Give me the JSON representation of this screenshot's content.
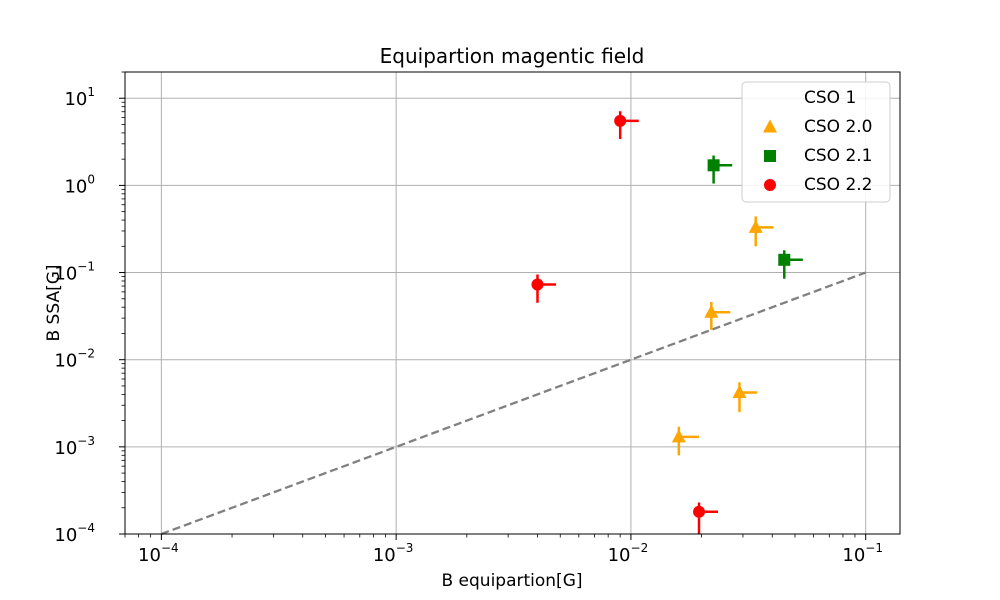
{
  "chart_data": {
    "type": "scatter",
    "title": "Equipartion magentic field",
    "xlabel": "B equipartion[G]",
    "ylabel": "B SSA[G]",
    "xscale": "log",
    "yscale": "log",
    "xlim": [
      7e-05,
      0.14
    ],
    "ylim": [
      0.0001,
      20
    ],
    "grid": true,
    "legend_position": "top-right",
    "x_ticks": [
      {
        "value": 0.0001,
        "base": "10",
        "exp": "−4"
      },
      {
        "value": 0.001,
        "base": "10",
        "exp": "−3"
      },
      {
        "value": 0.01,
        "base": "10",
        "exp": "−2"
      },
      {
        "value": 0.1,
        "base": "10",
        "exp": "−1"
      }
    ],
    "y_ticks": [
      {
        "value": 0.0001,
        "base": "10",
        "exp": "−4"
      },
      {
        "value": 0.001,
        "base": "10",
        "exp": "−3"
      },
      {
        "value": 0.01,
        "base": "10",
        "exp": "−2"
      },
      {
        "value": 0.1,
        "base": "10",
        "exp": "−1"
      },
      {
        "value": 1,
        "base": "10",
        "exp": "0"
      },
      {
        "value": 10,
        "base": "10",
        "exp": "1"
      }
    ],
    "reference_line": {
      "x": [
        0.0001,
        0.1
      ],
      "y": [
        0.0001,
        0.1
      ],
      "color": "#808080",
      "style": "dashed"
    },
    "series": [
      {
        "name": "CSO 1",
        "marker": "none",
        "color": "#ffffff",
        "points": []
      },
      {
        "name": "CSO 2.0",
        "marker": "triangle",
        "color": "#ffa500",
        "points": [
          {
            "x": 0.034,
            "y": 0.33,
            "xerr_plus": 0.0065,
            "yerr_minus": 0.13,
            "yerr_plus": 0.11
          },
          {
            "x": 0.022,
            "y": 0.035,
            "xerr_plus": 0.0045,
            "yerr_minus": 0.013,
            "yerr_plus": 0.011
          },
          {
            "x": 0.029,
            "y": 0.0042,
            "xerr_plus": 0.0055,
            "yerr_minus": 0.0017,
            "yerr_plus": 0.0013
          },
          {
            "x": 0.016,
            "y": 0.0013,
            "xerr_plus": 0.0035,
            "yerr_minus": 0.0005,
            "yerr_plus": 0.0004
          }
        ]
      },
      {
        "name": "CSO 2.1",
        "marker": "square",
        "color": "#008000",
        "points": [
          {
            "x": 0.0225,
            "y": 1.7,
            "xerr_plus": 0.0045,
            "yerr_minus": 0.65,
            "yerr_plus": 0.5
          },
          {
            "x": 0.045,
            "y": 0.14,
            "xerr_plus": 0.009,
            "yerr_minus": 0.055,
            "yerr_plus": 0.04
          }
        ]
      },
      {
        "name": "CSO 2.2",
        "marker": "circle",
        "color": "#ff0000",
        "points": [
          {
            "x": 0.009,
            "y": 5.5,
            "xerr_plus": 0.0018,
            "yerr_minus": 2.1,
            "yerr_plus": 1.6
          },
          {
            "x": 0.004,
            "y": 0.073,
            "xerr_plus": 0.0008,
            "yerr_minus": 0.028,
            "yerr_plus": 0.022
          },
          {
            "x": 0.0195,
            "y": 0.00018,
            "xerr_plus": 0.004,
            "yerr_minus": 8e-05,
            "yerr_plus": 5e-05
          }
        ]
      }
    ]
  }
}
